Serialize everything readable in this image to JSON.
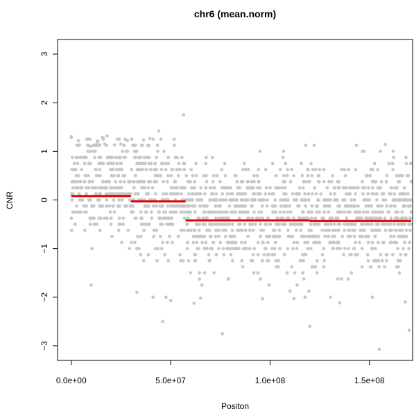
{
  "chart_data": {
    "type": "scatter",
    "title": "chr6 (mean.norm)",
    "xlabel": "Positon",
    "ylabel": "CNR",
    "xlim": [
      -6900000,
      171700000
    ],
    "ylim": [
      -3.3,
      3.3
    ],
    "x_ticks": [
      {
        "value": 0,
        "label": "0.0e+00"
      },
      {
        "value": 50000000,
        "label": "5.0e+07"
      },
      {
        "value": 100000000,
        "label": "1.0e+08"
      },
      {
        "value": 150000000,
        "label": "1.5e+08"
      }
    ],
    "y_ticks": [
      {
        "value": -3,
        "label": "−3"
      },
      {
        "value": -2,
        "label": "−2"
      },
      {
        "value": -1,
        "label": "−1"
      },
      {
        "value": 0,
        "label": "0"
      },
      {
        "value": 1,
        "label": "1"
      },
      {
        "value": 2,
        "label": "2"
      },
      {
        "value": 3,
        "label": "3"
      }
    ],
    "grid": false,
    "point_color": "#c8c8c8",
    "segment_color": "#e00000",
    "points": {
      "description_regions": [
        {
          "x_start": 0,
          "x_end": 30000000,
          "center": 0.3,
          "spread": 0.55,
          "count": 260
        },
        {
          "x_start": 30000000,
          "x_end": 58000000,
          "center": 0.05,
          "spread": 0.6,
          "count": 260
        },
        {
          "x_start": 58000000,
          "x_end": 171000000,
          "center": -0.35,
          "spread": 0.55,
          "count": 1100
        }
      ],
      "outliers": [
        [
          56500000,
          1.75
        ],
        [
          44000000,
          1.42
        ],
        [
          0,
          1.3
        ],
        [
          18000000,
          1.32
        ],
        [
          158000000,
          1.14
        ],
        [
          10000000,
          -1.75
        ],
        [
          46000000,
          -2.5
        ],
        [
          76000000,
          -2.75
        ],
        [
          120000000,
          -2.6
        ],
        [
          155000000,
          -3.07
        ],
        [
          170000000,
          -2.68
        ],
        [
          33000000,
          -1.9
        ],
        [
          50000000,
          -2.07
        ],
        [
          112000000,
          -2.03
        ],
        [
          168000000,
          -2.1
        ],
        [
          65000000,
          -2.02
        ]
      ]
    },
    "segments": [
      {
        "x_start": 0,
        "x_end": 30000000,
        "y": 0.08
      },
      {
        "x_start": 30000000,
        "x_end": 57500000,
        "y": -0.03
      },
      {
        "x_start": 57500000,
        "x_end": 120000000,
        "y": -0.42
      },
      {
        "x_start": 120000000,
        "x_end": 171000000,
        "y": -0.43
      }
    ]
  }
}
